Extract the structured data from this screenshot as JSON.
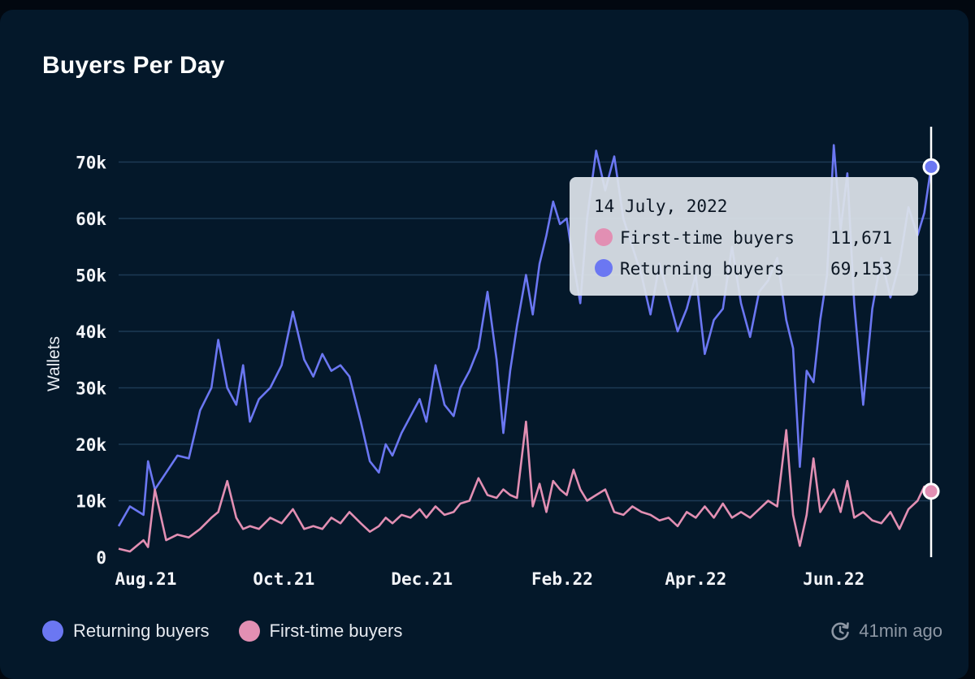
{
  "card": {
    "title": "Buyers Per Day"
  },
  "footer": {
    "updated": "41min ago",
    "updated_icon": "refresh-clock-icon"
  },
  "colors": {
    "returning": "#6b77f2",
    "first_time": "#e28fb3",
    "grid": "#1d3a55",
    "background": "#04182a"
  },
  "chart_data": {
    "type": "line",
    "title": "Buyers Per Day",
    "xlabel": "",
    "ylabel": "Wallets",
    "ylim": [
      0,
      80000
    ],
    "yticks": [
      0,
      10000,
      20000,
      30000,
      40000,
      50000,
      60000,
      70000
    ],
    "ytick_labels": [
      "0",
      "10k",
      "20k",
      "30k",
      "40k",
      "50k",
      "60k",
      "70k"
    ],
    "xlim": [
      "2021-07-20",
      "2022-07-14"
    ],
    "xticks": [
      "2021-08-01",
      "2021-10-01",
      "2021-12-01",
      "2022-02-01",
      "2022-04-01",
      "2022-06-01"
    ],
    "xtick_labels": [
      "Aug.21",
      "Oct.21",
      "Dec.21",
      "Feb.22",
      "Apr.22",
      "Jun.22"
    ],
    "grid": true,
    "legend": "bottom-left",
    "series": [
      {
        "name": "Returning buyers",
        "x": [
          "2021-07-20",
          "2021-07-25",
          "2021-07-31",
          "2021-08-02",
          "2021-08-05",
          "2021-08-10",
          "2021-08-15",
          "2021-08-20",
          "2021-08-25",
          "2021-08-30",
          "2021-09-02",
          "2021-09-06",
          "2021-09-10",
          "2021-09-13",
          "2021-09-16",
          "2021-09-20",
          "2021-09-25",
          "2021-09-30",
          "2021-10-05",
          "2021-10-10",
          "2021-10-14",
          "2021-10-18",
          "2021-10-22",
          "2021-10-26",
          "2021-10-30",
          "2021-11-04",
          "2021-11-08",
          "2021-11-12",
          "2021-11-15",
          "2021-11-18",
          "2021-11-22",
          "2021-11-26",
          "2021-11-30",
          "2021-12-03",
          "2021-12-07",
          "2021-12-11",
          "2021-12-15",
          "2021-12-18",
          "2021-12-22",
          "2021-12-26",
          "2021-12-30",
          "2022-01-03",
          "2022-01-06",
          "2022-01-09",
          "2022-01-12",
          "2022-01-16",
          "2022-01-19",
          "2022-01-22",
          "2022-01-25",
          "2022-01-28",
          "2022-01-31",
          "2022-02-03",
          "2022-02-06",
          "2022-02-09",
          "2022-02-12",
          "2022-02-16",
          "2022-02-20",
          "2022-02-24",
          "2022-02-28",
          "2022-03-04",
          "2022-03-08",
          "2022-03-12",
          "2022-03-16",
          "2022-03-20",
          "2022-03-24",
          "2022-03-28",
          "2022-04-01",
          "2022-04-05",
          "2022-04-09",
          "2022-04-13",
          "2022-04-17",
          "2022-04-21",
          "2022-04-25",
          "2022-04-29",
          "2022-05-03",
          "2022-05-07",
          "2022-05-11",
          "2022-05-14",
          "2022-05-17",
          "2022-05-20",
          "2022-05-23",
          "2022-05-26",
          "2022-05-29",
          "2022-06-01",
          "2022-06-04",
          "2022-06-07",
          "2022-06-10",
          "2022-06-14",
          "2022-06-18",
          "2022-06-22",
          "2022-06-26",
          "2022-06-30",
          "2022-07-04",
          "2022-07-08",
          "2022-07-11",
          "2022-07-14"
        ],
        "y": [
          5500,
          9000,
          7500,
          17000,
          12000,
          15000,
          18000,
          17500,
          26000,
          30000,
          38500,
          30000,
          27000,
          34000,
          24000,
          28000,
          30000,
          34000,
          43500,
          35000,
          32000,
          36000,
          33000,
          34000,
          32000,
          24000,
          17000,
          15000,
          20000,
          18000,
          22000,
          25000,
          28000,
          24000,
          34000,
          27000,
          25000,
          30000,
          33000,
          37000,
          47000,
          35000,
          22000,
          33000,
          41000,
          50000,
          43000,
          52000,
          57000,
          63000,
          59000,
          60000,
          52000,
          45000,
          60000,
          72000,
          65000,
          71000,
          60000,
          55000,
          50000,
          43000,
          52000,
          46000,
          40000,
          44000,
          50000,
          36000,
          42000,
          44000,
          55000,
          45000,
          39000,
          47000,
          49000,
          53000,
          42000,
          37000,
          16000,
          33000,
          31000,
          42000,
          50000,
          73000,
          58000,
          68000,
          45000,
          27000,
          44000,
          53000,
          46000,
          52000,
          62000,
          57000,
          61000,
          69153
        ]
      },
      {
        "name": "First-time buyers",
        "x": [
          "2021-07-20",
          "2021-07-25",
          "2021-07-31",
          "2021-08-02",
          "2021-08-05",
          "2021-08-10",
          "2021-08-15",
          "2021-08-20",
          "2021-08-25",
          "2021-08-30",
          "2021-09-02",
          "2021-09-06",
          "2021-09-10",
          "2021-09-13",
          "2021-09-16",
          "2021-09-20",
          "2021-09-25",
          "2021-09-30",
          "2021-10-05",
          "2021-10-10",
          "2021-10-14",
          "2021-10-18",
          "2021-10-22",
          "2021-10-26",
          "2021-10-30",
          "2021-11-04",
          "2021-11-08",
          "2021-11-12",
          "2021-11-15",
          "2021-11-18",
          "2021-11-22",
          "2021-11-26",
          "2021-11-30",
          "2021-12-03",
          "2021-12-07",
          "2021-12-11",
          "2021-12-15",
          "2021-12-18",
          "2021-12-22",
          "2021-12-26",
          "2021-12-30",
          "2022-01-03",
          "2022-01-06",
          "2022-01-09",
          "2022-01-12",
          "2022-01-16",
          "2022-01-19",
          "2022-01-22",
          "2022-01-25",
          "2022-01-28",
          "2022-01-31",
          "2022-02-03",
          "2022-02-06",
          "2022-02-09",
          "2022-02-12",
          "2022-02-16",
          "2022-02-20",
          "2022-02-24",
          "2022-02-28",
          "2022-03-04",
          "2022-03-08",
          "2022-03-12",
          "2022-03-16",
          "2022-03-20",
          "2022-03-24",
          "2022-03-28",
          "2022-04-01",
          "2022-04-05",
          "2022-04-09",
          "2022-04-13",
          "2022-04-17",
          "2022-04-21",
          "2022-04-25",
          "2022-04-29",
          "2022-05-03",
          "2022-05-07",
          "2022-05-11",
          "2022-05-14",
          "2022-05-17",
          "2022-05-20",
          "2022-05-23",
          "2022-05-26",
          "2022-05-29",
          "2022-06-01",
          "2022-06-04",
          "2022-06-07",
          "2022-06-10",
          "2022-06-14",
          "2022-06-18",
          "2022-06-22",
          "2022-06-26",
          "2022-06-30",
          "2022-07-04",
          "2022-07-08",
          "2022-07-11",
          "2022-07-14"
        ],
        "y": [
          1500,
          1000,
          3000,
          1800,
          12000,
          3000,
          4000,
          3500,
          5000,
          7000,
          8000,
          13500,
          7000,
          5000,
          5500,
          5000,
          7000,
          6000,
          8500,
          5000,
          5500,
          5000,
          7000,
          6000,
          8000,
          6000,
          4500,
          5500,
          7000,
          6000,
          7500,
          7000,
          8500,
          7000,
          9000,
          7500,
          8000,
          9500,
          10000,
          14000,
          11000,
          10500,
          12000,
          11000,
          10500,
          24000,
          9000,
          13000,
          8000,
          13500,
          12000,
          11000,
          15500,
          12000,
          10000,
          11000,
          12000,
          8000,
          7500,
          9000,
          8000,
          7500,
          6500,
          7000,
          5500,
          8000,
          7000,
          9000,
          7000,
          9500,
          7000,
          8000,
          7000,
          8500,
          10000,
          9000,
          22500,
          7500,
          2000,
          7500,
          17500,
          8000,
          10000,
          12000,
          8000,
          13500,
          7000,
          8000,
          6500,
          6000,
          8000,
          5000,
          8500,
          10000,
          12500,
          11671
        ]
      }
    ],
    "tooltip": {
      "date": "14 July, 2022",
      "rows": [
        {
          "label": "First-time buyers",
          "value": "11,671"
        },
        {
          "label": "Returning buyers",
          "value": "69,153"
        }
      ]
    }
  }
}
